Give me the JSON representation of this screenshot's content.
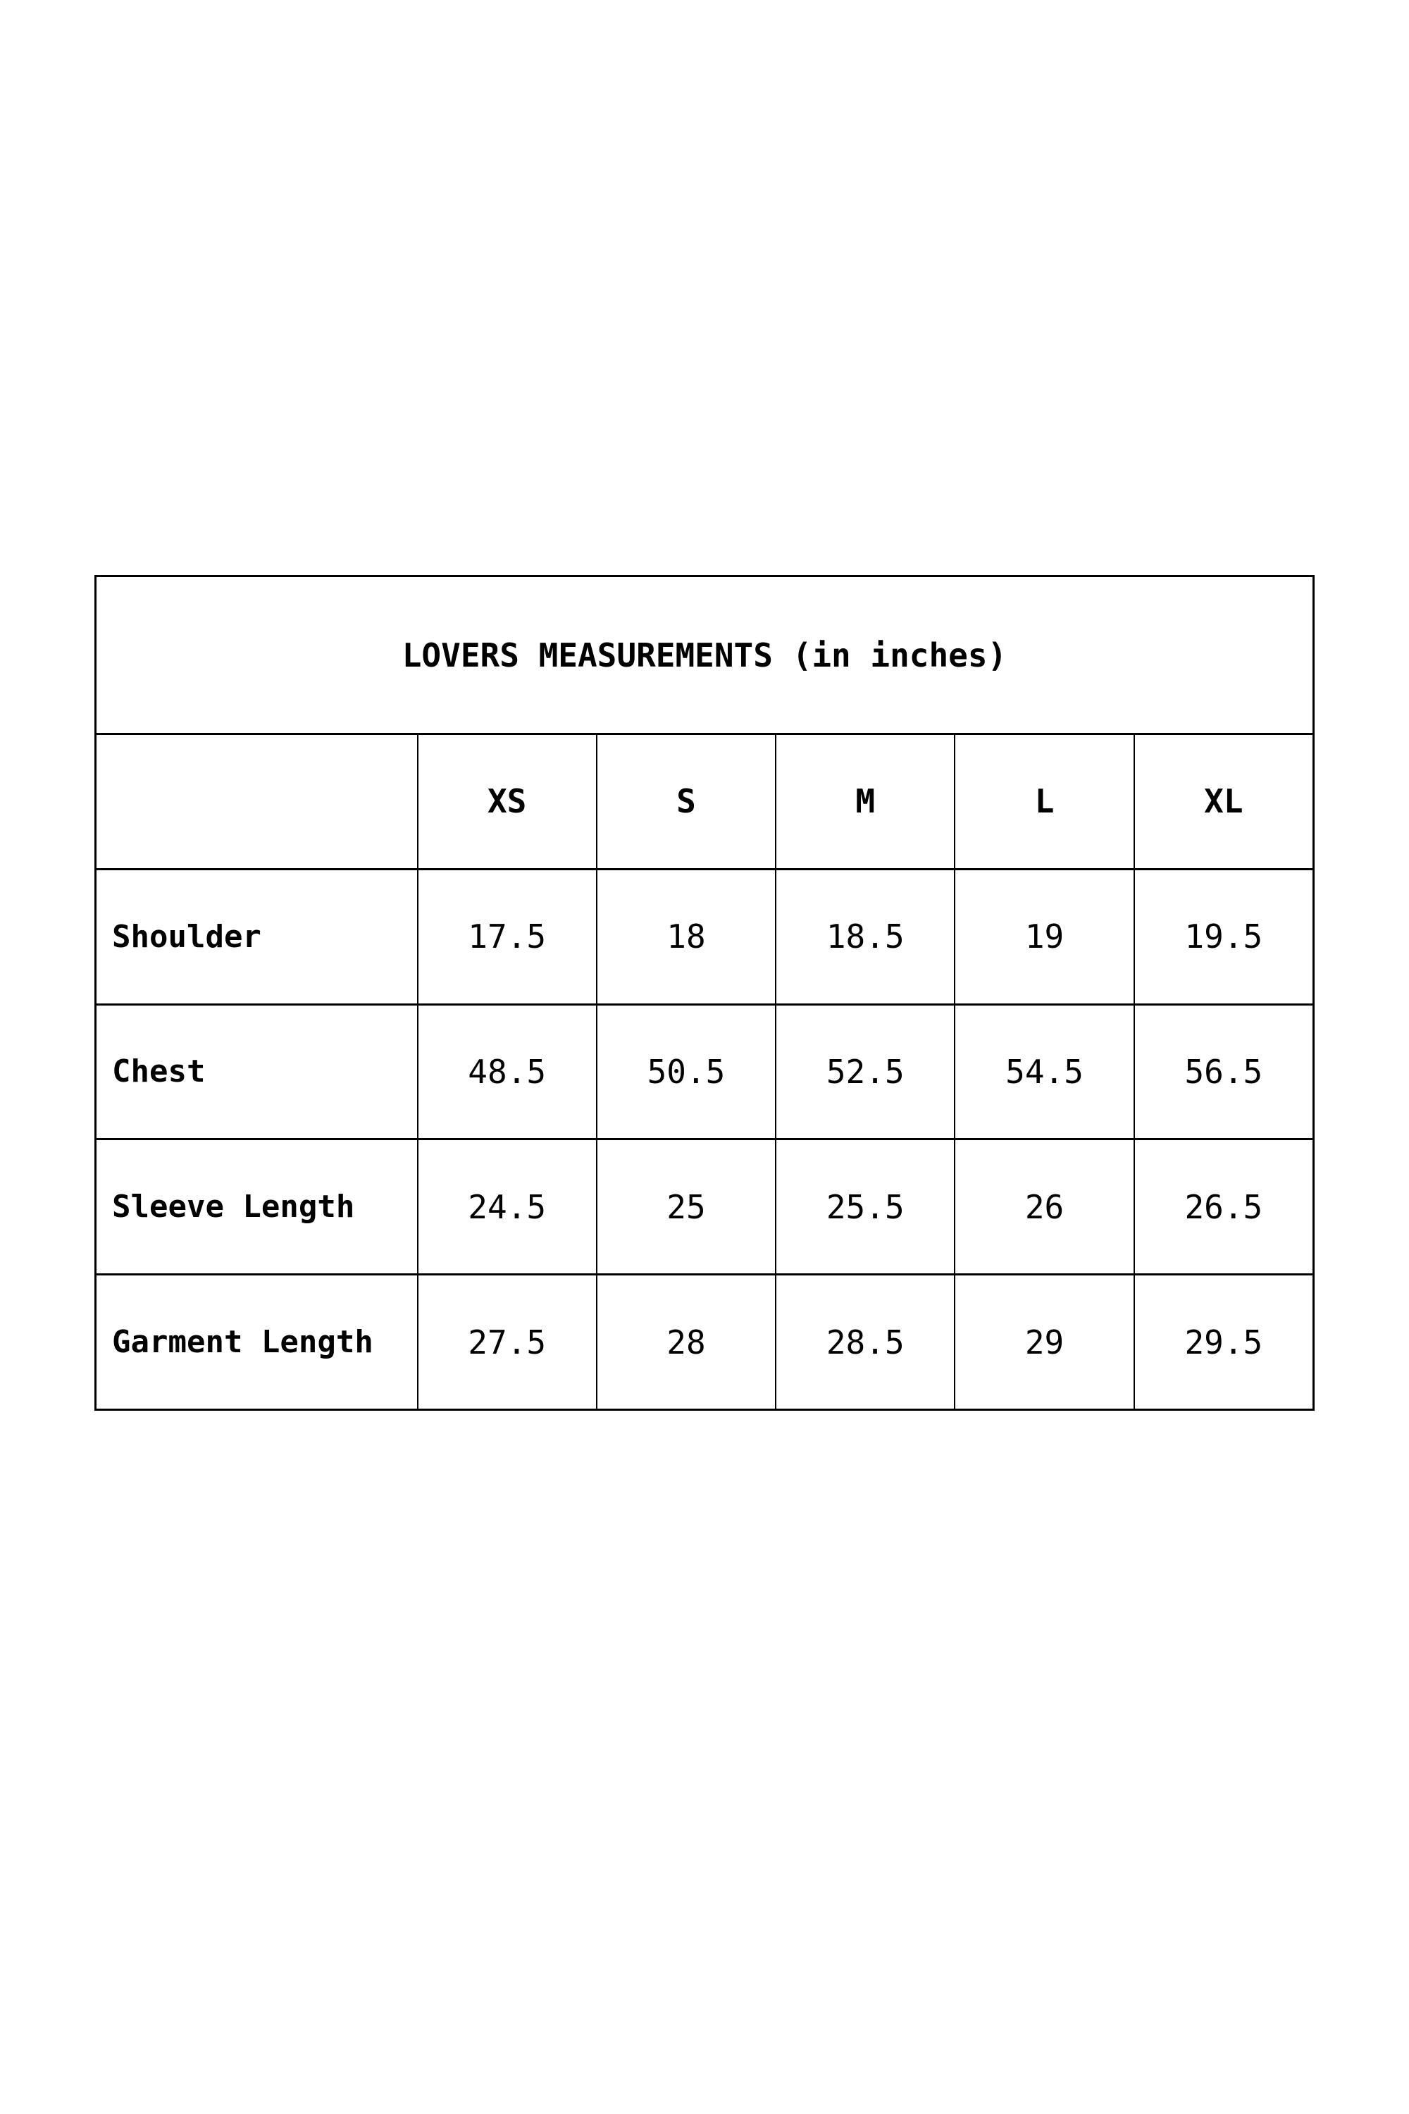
{
  "size_chart": {
    "title": "LOVERS MEASUREMENTS (in inches)",
    "column_headers": [
      "XS",
      "S",
      "M",
      "L",
      "XL"
    ],
    "rows": [
      {
        "label": "Shoulder",
        "values": [
          "17.5",
          "18",
          "18.5",
          "19",
          "19.5"
        ]
      },
      {
        "label": "Chest",
        "values": [
          "48.5",
          "50.5",
          "52.5",
          "54.5",
          "56.5"
        ]
      },
      {
        "label": "Sleeve Length",
        "values": [
          "24.5",
          "25",
          "25.5",
          "26",
          "26.5"
        ]
      },
      {
        "label": "Garment Length",
        "values": [
          "27.5",
          "28",
          "28.5",
          "29",
          "29.5"
        ]
      }
    ]
  },
  "colors": {
    "text": "#000000",
    "border": "#000000",
    "background": "#ffffff"
  }
}
